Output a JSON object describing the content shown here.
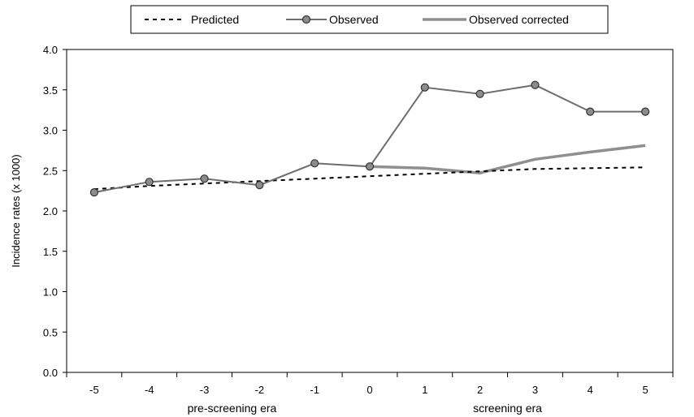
{
  "chart_data": {
    "type": "line",
    "title": "",
    "xlabel": "",
    "ylabel": "Incidence rates (x 1000)",
    "x": [
      -5,
      -4,
      -3,
      -2,
      -1,
      0,
      1,
      2,
      3,
      4,
      5
    ],
    "x_tick_labels": [
      "-5",
      "-4",
      "-3",
      "-2",
      "-1",
      "0",
      "1",
      "2",
      "3",
      "4",
      "5"
    ],
    "y_tick_labels": [
      "0.0",
      "0.5",
      "1.0",
      "1.5",
      "2.0",
      "2.5",
      "3.0",
      "3.5",
      "4.0"
    ],
    "ylim": [
      0,
      4
    ],
    "grid": false,
    "legend_position": "top-center",
    "era_labels": [
      {
        "text": "pre-screening era",
        "x": -2.5
      },
      {
        "text": "screening era",
        "x": 2.5
      }
    ],
    "series": [
      {
        "name": "Predicted",
        "style": "dashed",
        "color": "#000000",
        "x": [
          -5,
          -4,
          -3,
          -2,
          -1,
          0,
          1,
          2,
          3,
          4,
          5
        ],
        "values": [
          2.27,
          2.31,
          2.34,
          2.37,
          2.4,
          2.43,
          2.46,
          2.49,
          2.52,
          2.53,
          2.54
        ]
      },
      {
        "name": "Observed",
        "style": "line-markers",
        "color": "#6e6e6e",
        "marker_color": "#8c8c8c",
        "x": [
          -5,
          -4,
          -3,
          -2,
          -1,
          0,
          1,
          2,
          3,
          4,
          5
        ],
        "values": [
          2.23,
          2.36,
          2.4,
          2.32,
          2.59,
          2.55,
          3.53,
          3.45,
          3.56,
          3.23,
          3.23
        ]
      },
      {
        "name": "Observed corrected",
        "style": "line",
        "color": "#8f8f8f",
        "x": [
          0,
          1,
          2,
          3,
          4,
          5
        ],
        "values": [
          2.55,
          2.53,
          2.47,
          2.64,
          2.73,
          2.81
        ]
      }
    ]
  }
}
